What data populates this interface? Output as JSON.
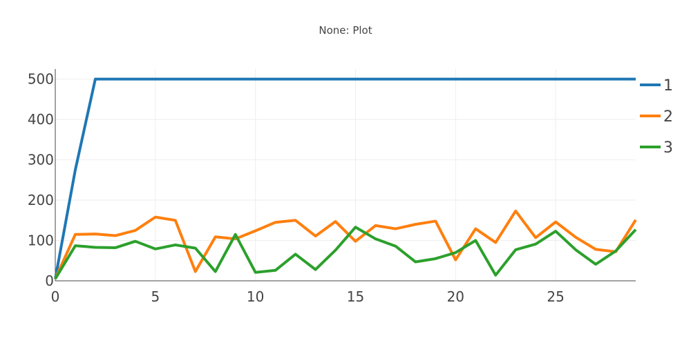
{
  "chart_data": {
    "type": "line",
    "title": "None: Plot",
    "xlabel": "",
    "ylabel": "",
    "xlim": [
      0,
      29
    ],
    "ylim": [
      0,
      525
    ],
    "xticks": [
      0,
      5,
      10,
      15,
      20,
      25
    ],
    "yticks": [
      0,
      100,
      200,
      300,
      400,
      500
    ],
    "grid": true,
    "legend_position": "right",
    "x": [
      0,
      1,
      2,
      3,
      4,
      5,
      6,
      7,
      8,
      9,
      10,
      11,
      12,
      13,
      14,
      15,
      16,
      17,
      18,
      19,
      20,
      21,
      22,
      23,
      24,
      25,
      26,
      27,
      28,
      29
    ],
    "series": [
      {
        "name": "1",
        "color": "#1f77b4",
        "values": [
          5,
          275,
          500,
          500,
          500,
          500,
          500,
          500,
          500,
          500,
          500,
          500,
          500,
          500,
          500,
          500,
          500,
          500,
          500,
          500,
          500,
          500,
          500,
          500,
          500,
          500,
          500,
          500,
          500,
          500
        ]
      },
      {
        "name": "2",
        "color": "#ff7f0e",
        "values": [
          5,
          115,
          116,
          112,
          125,
          158,
          150,
          23,
          109,
          104,
          124,
          145,
          150,
          111,
          147,
          98,
          137,
          129,
          140,
          148,
          52,
          129,
          95,
          173,
          107,
          146,
          108,
          78,
          72,
          151
        ]
      },
      {
        "name": "3",
        "color": "#2ca02c",
        "values": [
          5,
          87,
          83,
          82,
          98,
          79,
          89,
          81,
          23,
          115,
          21,
          26,
          66,
          28,
          76,
          133,
          104,
          86,
          47,
          55,
          70,
          100,
          14,
          77,
          91,
          123,
          77,
          41,
          74,
          127
        ]
      }
    ]
  }
}
